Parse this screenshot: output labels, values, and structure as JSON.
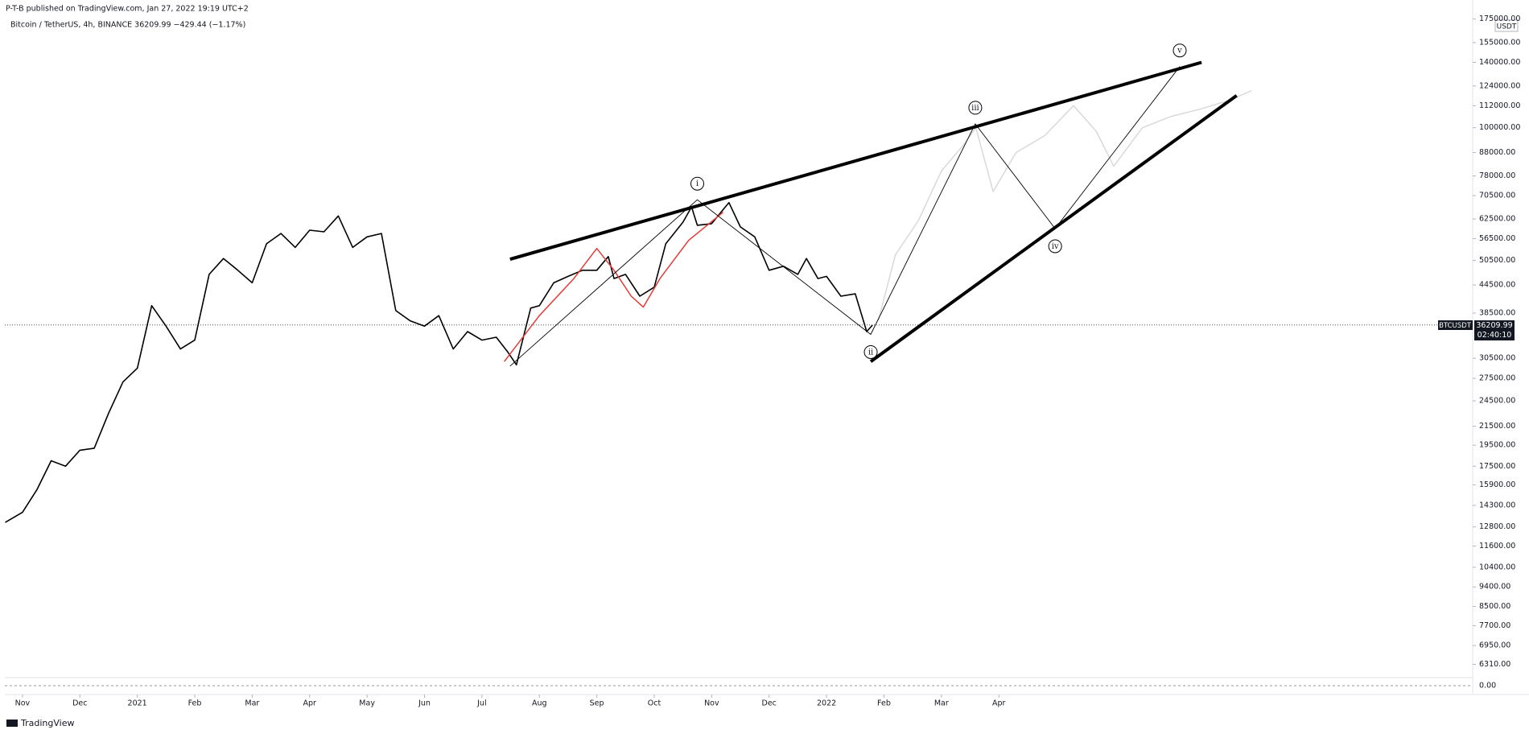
{
  "header": "P-T-B published on TradingView.com, Jan 27, 2022 19:19 UTC+2",
  "footer": "TradingView",
  "chart_data": {
    "type": "line",
    "title": "Bitcoin / TetherUS, 4h, BINANCE  36209.99  −429.44 (−1.17%)",
    "currency": "USDT",
    "symbol": "BTCUSDT",
    "last_price": 36209.99,
    "countdown": "02:40:10",
    "log_scale": true,
    "color": "#000000",
    "xlim": [
      -0.307,
      25.25
    ],
    "xticks": [
      {
        "value": 0,
        "label": "Nov"
      },
      {
        "value": 1,
        "label": "Dec"
      },
      {
        "value": 2,
        "label": "2021"
      },
      {
        "value": 3,
        "label": "Feb"
      },
      {
        "value": 4,
        "label": "Mar"
      },
      {
        "value": 5,
        "label": "Apr"
      },
      {
        "value": 6,
        "label": "May"
      },
      {
        "value": 7,
        "label": "Jun"
      },
      {
        "value": 8,
        "label": "Jul"
      },
      {
        "value": 9,
        "label": "Aug"
      },
      {
        "value": 10,
        "label": "Sep"
      },
      {
        "value": 11,
        "label": "Oct"
      },
      {
        "value": 12,
        "label": "Nov"
      },
      {
        "value": 13,
        "label": "Dec"
      },
      {
        "value": 14,
        "label": "2022"
      },
      {
        "value": 15,
        "label": "Feb"
      },
      {
        "value": 16,
        "label": "Mar"
      },
      {
        "value": 17,
        "label": "Apr"
      }
    ],
    "ylim": [
      5940,
      193000
    ],
    "yticks": [
      {
        "value": 175000,
        "label": "175000.00"
      },
      {
        "value": 155000,
        "label": "155000.00"
      },
      {
        "value": 140000,
        "label": "140000.00"
      },
      {
        "value": 124000,
        "label": "124000.00"
      },
      {
        "value": 112000,
        "label": "112000.00"
      },
      {
        "value": 100000,
        "label": "100000.00"
      },
      {
        "value": 88000,
        "label": "88000.00"
      },
      {
        "value": 78000,
        "label": "78000.00"
      },
      {
        "value": 70500,
        "label": "70500.00"
      },
      {
        "value": 62500,
        "label": "62500.00"
      },
      {
        "value": 56500,
        "label": "56500.00"
      },
      {
        "value": 50500,
        "label": "50500.00"
      },
      {
        "value": 44500,
        "label": "44500.00"
      },
      {
        "value": 38500,
        "label": "38500.00"
      },
      {
        "value": 30500,
        "label": "30500.00"
      },
      {
        "value": 27500,
        "label": "27500.00"
      },
      {
        "value": 24500,
        "label": "24500.00"
      },
      {
        "value": 21500,
        "label": "21500.00"
      },
      {
        "value": 19500,
        "label": "19500.00"
      },
      {
        "value": 17500,
        "label": "17500.00"
      },
      {
        "value": 15900,
        "label": "15900.00"
      },
      {
        "value": 14300,
        "label": "14300.00"
      },
      {
        "value": 12800,
        "label": "12800.00"
      },
      {
        "value": 11600,
        "label": "11600.00"
      },
      {
        "value": 10400,
        "label": "10400.00"
      },
      {
        "value": 9400,
        "label": "9400.00"
      },
      {
        "value": 8500,
        "label": "8500.00"
      },
      {
        "value": 7700,
        "label": "7700.00"
      },
      {
        "value": 6950,
        "label": "6950.00"
      },
      {
        "value": 6310,
        "label": "6310.00"
      }
    ],
    "x": [
      -0.3,
      0,
      0.25,
      0.5,
      0.75,
      1.0,
      1.25,
      1.5,
      1.75,
      2.0,
      2.25,
      2.5,
      2.75,
      3.0,
      3.25,
      3.5,
      3.75,
      4.0,
      4.25,
      4.5,
      4.75,
      5.0,
      5.25,
      5.5,
      5.75,
      6.0,
      6.25,
      6.5,
      6.75,
      7.0,
      7.25,
      7.5,
      7.75,
      8.0,
      8.25,
      8.45,
      8.6,
      8.85,
      9.0,
      9.25,
      9.5,
      9.75,
      10.0,
      10.2,
      10.3,
      10.5,
      10.75,
      11.0,
      11.2,
      11.5,
      11.65,
      11.75,
      12.0,
      12.3,
      12.5,
      12.75,
      13.0,
      13.25,
      13.5,
      13.65,
      13.85,
      14.0,
      14.25,
      14.5,
      14.7,
      14.8
    ],
    "values": [
      13100,
      13800,
      15500,
      18000,
      17500,
      19000,
      19200,
      23000,
      27000,
      29000,
      40000,
      36000,
      32000,
      33500,
      47000,
      51000,
      48000,
      45000,
      55000,
      58000,
      54000,
      59000,
      58500,
      63500,
      54000,
      57000,
      58000,
      39000,
      37000,
      36000,
      38000,
      32000,
      35000,
      33500,
      34000,
      31500,
      29500,
      39500,
      40000,
      45000,
      46500,
      48000,
      48000,
      51500,
      46000,
      47000,
      42000,
      44000,
      55000,
      61500,
      66500,
      60500,
      61000,
      68000,
      60000,
      57000,
      48000,
      49000,
      47000,
      51000,
      46000,
      46500,
      42000,
      42500,
      35000,
      36200
    ],
    "projection": {
      "color": "#d9d9d9",
      "x": [
        14.9,
        15.2,
        15.6,
        16.0,
        16.4,
        16.6,
        16.9,
        17.3,
        17.8,
        18.3,
        18.7,
        19.0,
        19.5,
        20.0,
        20.5,
        21.0,
        21.4
      ],
      "values": [
        37000,
        52000,
        62000,
        80000,
        92000,
        100000,
        72000,
        88000,
        96000,
        112000,
        98000,
        82000,
        100000,
        106000,
        110000,
        115000,
        121000
      ]
    },
    "red_path": {
      "color": "#e53935",
      "x": [
        8.39,
        9.0,
        9.6,
        10.0,
        10.3,
        10.6,
        10.81,
        11.1,
        11.6,
        12.2
      ],
      "values": [
        30000,
        38000,
        46000,
        53700,
        48000,
        42000,
        39700,
        46000,
        56000,
        64700
      ]
    },
    "wave_start": {
      "x": 8.49,
      "y": 29300
    },
    "waves": [
      {
        "label": "i",
        "x": 11.75,
        "y": 69000
      },
      {
        "label": "ii",
        "x": 14.77,
        "y": 34500
      },
      {
        "label": "iii",
        "x": 16.59,
        "y": 102000
      },
      {
        "label": "iv",
        "x": 17.98,
        "y": 59500
      },
      {
        "label": "v",
        "x": 20.15,
        "y": 137000
      }
    ],
    "trendlines": [
      {
        "x": [
          8.49,
          20.53
        ],
        "y": [
          50800,
          140000
        ]
      },
      {
        "x": [
          14.77,
          21.14
        ],
        "y": [
          30000,
          118000
        ]
      }
    ],
    "indicator": {
      "yticks": [
        {
          "value": 0,
          "label": "0.00"
        }
      ]
    }
  }
}
